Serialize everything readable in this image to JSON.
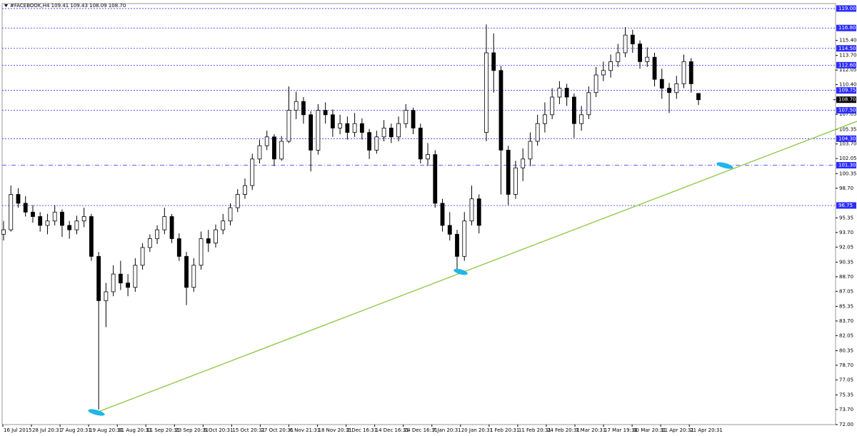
{
  "chart_data": {
    "type": "candlestick",
    "title": "#FACEBOOK,H4  109.41 109.43 108.09 108.70",
    "x_labels": [
      "16 Jul 2015",
      "28 Jul 20:31",
      "7 Aug 20:31",
      "19 Aug 20:31",
      "31 Aug 20:31",
      "11 Sep 20:31",
      "23 Sep 20:31",
      "5 Oct 20:31",
      "15 Oct 20:31",
      "27 Oct 20:31",
      "6 Nov 21:31",
      "18 Nov 20:31",
      "2 Dec 16:31",
      "14 Dec 16:31",
      "24 Dec 16:31",
      "7 Jan 20:31",
      "20 Jan 20:31",
      "1 Feb 20:31",
      "11 Feb 20:31",
      "24 Feb 20:31",
      "7 Mar 20:31",
      "17 Mar 19:31",
      "30 Mar 20:31",
      "11 Apr 20:31",
      "21 Apr 20:31"
    ],
    "candles": [
      [
        93.5,
        95,
        92.8,
        94
      ],
      [
        94,
        99,
        93.8,
        98
      ],
      [
        98,
        98.7,
        96.5,
        97
      ],
      [
        97,
        97.8,
        95.5,
        96
      ],
      [
        96,
        96.8,
        94.8,
        95.5
      ],
      [
        95.5,
        96,
        93.8,
        94.5
      ],
      [
        94.5,
        95.8,
        93.5,
        95
      ],
      [
        95,
        96.8,
        94.5,
        96
      ],
      [
        96,
        96.3,
        93.2,
        94.5
      ],
      [
        94.5,
        95,
        93,
        94
      ],
      [
        94,
        95.6,
        93.5,
        95
      ],
      [
        95,
        96.5,
        94.3,
        95.5
      ],
      [
        95.5,
        95.8,
        90.5,
        91
      ],
      [
        91,
        91.5,
        73.7,
        86
      ],
      [
        86,
        88,
        83,
        87
      ],
      [
        87,
        90,
        86.5,
        89
      ],
      [
        89,
        90.5,
        87.2,
        88
      ],
      [
        88,
        89,
        86.5,
        87.5
      ],
      [
        87.5,
        90.8,
        87,
        90
      ],
      [
        90,
        92.5,
        89.5,
        92
      ],
      [
        92,
        93.5,
        91.5,
        93
      ],
      [
        93,
        94.5,
        92.4,
        94
      ],
      [
        94,
        96.5,
        93.5,
        95.5
      ],
      [
        95.5,
        95.8,
        92.5,
        93
      ],
      [
        93,
        93.6,
        90.5,
        91
      ],
      [
        91,
        91.5,
        85.5,
        87.5
      ],
      [
        87.5,
        90.8,
        87,
        90
      ],
      [
        90,
        93.8,
        89.5,
        93
      ],
      [
        93,
        94,
        91.5,
        92.5
      ],
      [
        92.5,
        94.6,
        92,
        94
      ],
      [
        94,
        95.8,
        93.5,
        95
      ],
      [
        95,
        97,
        94.5,
        96.5
      ],
      [
        96.5,
        98.6,
        96,
        98
      ],
      [
        98,
        99.8,
        97.5,
        99
      ],
      [
        99,
        102.6,
        98.5,
        102
      ],
      [
        102,
        104.2,
        101.5,
        103.5
      ],
      [
        103.5,
        105.2,
        103,
        104.5
      ],
      [
        104.5,
        104.8,
        101.2,
        102
      ],
      [
        102,
        104.6,
        101.8,
        104
      ],
      [
        104,
        110.2,
        103.8,
        107.5
      ],
      [
        107.5,
        109.6,
        106.5,
        108.5
      ],
      [
        108.5,
        109,
        106,
        107
      ],
      [
        107,
        107.4,
        100.6,
        103
      ],
      [
        103,
        108.2,
        102.5,
        107.5
      ],
      [
        107.5,
        108.4,
        106,
        107
      ],
      [
        107,
        107.6,
        104.5,
        105.5
      ],
      [
        105.5,
        107,
        104.8,
        106
      ],
      [
        106,
        106.8,
        104.2,
        105
      ],
      [
        105,
        107.2,
        104.5,
        106
      ],
      [
        106,
        106.6,
        104.2,
        105
      ],
      [
        105,
        105.4,
        102,
        103
      ],
      [
        103,
        105.2,
        102.6,
        104.5
      ],
      [
        104.5,
        106.4,
        104,
        105.5
      ],
      [
        105.5,
        106,
        103.8,
        104.5
      ],
      [
        104.5,
        106.8,
        104,
        106
      ],
      [
        106,
        108.2,
        105.5,
        107.5
      ],
      [
        107.5,
        107.8,
        104.8,
        105.5
      ],
      [
        105.5,
        106,
        101.5,
        102
      ],
      [
        102,
        103.8,
        101.2,
        102.5
      ],
      [
        102.5,
        103,
        96.5,
        97
      ],
      [
        97,
        97.5,
        93.8,
        94.5
      ],
      [
        94.5,
        96,
        92.8,
        93.5
      ],
      [
        93.5,
        94,
        89.5,
        91
      ],
      [
        91,
        96,
        90.5,
        95
      ],
      [
        95,
        99,
        94.5,
        97.5
      ],
      [
        97.5,
        98,
        93.6,
        94.5
      ],
      [
        105,
        117.2,
        104,
        114
      ],
      [
        114,
        116.2,
        109.5,
        112
      ],
      [
        112,
        112.5,
        98,
        103
      ],
      [
        103,
        103.5,
        96.8,
        98
      ],
      [
        98,
        101.8,
        97.5,
        101
      ],
      [
        101,
        103.2,
        99.5,
        102
      ],
      [
        102,
        105,
        101.2,
        104
      ],
      [
        104,
        107,
        103.5,
        106
      ],
      [
        106,
        108.4,
        105,
        107
      ],
      [
        107,
        110,
        106.5,
        109
      ],
      [
        109,
        110.8,
        108.2,
        110
      ],
      [
        110,
        110.5,
        108,
        109
      ],
      [
        109,
        109.4,
        104.4,
        106
      ],
      [
        106,
        108,
        105.2,
        107
      ],
      [
        107,
        110.2,
        106.5,
        109.5
      ],
      [
        109.5,
        112.4,
        109,
        111.5
      ],
      [
        111.5,
        113,
        110.8,
        112
      ],
      [
        112,
        113.8,
        111.2,
        113
      ],
      [
        113,
        115,
        112.4,
        114
      ],
      [
        114,
        116.9,
        113.5,
        116
      ],
      [
        116,
        116.6,
        114,
        115
      ],
      [
        115,
        115.4,
        112.2,
        113
      ],
      [
        113,
        114.6,
        112.4,
        113.5
      ],
      [
        113.5,
        114,
        110.2,
        111
      ],
      [
        111,
        112.2,
        108.8,
        110
      ],
      [
        110,
        110.6,
        107.2,
        109.5
      ],
      [
        109.5,
        111.4,
        108.8,
        110.5
      ],
      [
        110.5,
        113.8,
        110,
        113
      ],
      [
        113,
        113.4,
        109.5,
        110.5
      ],
      [
        109.41,
        109.43,
        108.09,
        108.7
      ]
    ],
    "up_color": "#ffffff",
    "down_color": "#000000",
    "ylim": [
      72,
      119.56
    ],
    "yticks": [
      {
        "value": 115.4,
        "label": "115.40"
      },
      {
        "value": 113.7,
        "label": "113.70"
      },
      {
        "value": 112.05,
        "label": "112.05"
      },
      {
        "value": 110.4,
        "label": "110.40"
      },
      {
        "value": 107.05,
        "label": "107.05"
      },
      {
        "value": 105.35,
        "label": "105.35"
      },
      {
        "value": 103.7,
        "label": "103.70"
      },
      {
        "value": 102.05,
        "label": "102.05"
      },
      {
        "value": 100.35,
        "label": "100.35"
      },
      {
        "value": 98.7,
        "label": "98.70"
      },
      {
        "value": 95.35,
        "label": "95.35"
      },
      {
        "value": 93.7,
        "label": "93.70"
      },
      {
        "value": 92.05,
        "label": "92.05"
      },
      {
        "value": 90.35,
        "label": "90.35"
      },
      {
        "value": 88.7,
        "label": "88.70"
      },
      {
        "value": 87.05,
        "label": "87.05"
      },
      {
        "value": 85.35,
        "label": "85.35"
      },
      {
        "value": 83.7,
        "label": "83.70"
      },
      {
        "value": 82.05,
        "label": "82.05"
      },
      {
        "value": 80.35,
        "label": "80.35"
      },
      {
        "value": 78.7,
        "label": "78.70"
      },
      {
        "value": 77.05,
        "label": "77.05"
      },
      {
        "value": 75.35,
        "label": "75.35"
      },
      {
        "value": 73.7,
        "label": "73.70"
      },
      {
        "value": 72,
        "label": "72.00"
      }
    ],
    "levels": [
      {
        "value": 119,
        "label": "119.00"
      },
      {
        "value": 116.8,
        "label": "116.80"
      },
      {
        "value": 114.5,
        "label": "114.50"
      },
      {
        "value": 112.6,
        "label": "112.60"
      },
      {
        "value": 109.75,
        "label": "109.75"
      },
      {
        "value": 107.5,
        "label": "107.50"
      },
      {
        "value": 104.3,
        "label": "104.30"
      },
      {
        "value": 101.3,
        "label": "101.30"
      },
      {
        "value": 96.75,
        "label": "96.75"
      }
    ],
    "level_color": "#2b2bff",
    "current_price": {
      "value": 108.7,
      "label": "108.70"
    }
  }
}
